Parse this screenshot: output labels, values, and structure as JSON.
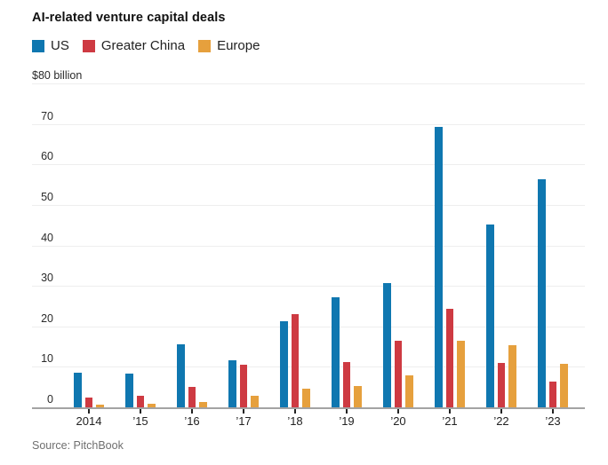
{
  "header": {
    "title": "AI-related venture capital deals"
  },
  "source": "Source: PitchBook",
  "colors": {
    "us": "#0f77b0",
    "greater_china": "#ce3a42",
    "europe": "#e6a03d",
    "gridline": "#eeeeee",
    "axis_line": "#a3a3a3",
    "title_text": "#111111",
    "label_text": "#222222",
    "source_text": "#6f6f6f"
  },
  "chart_data": {
    "type": "bar",
    "title": "AI-related venture capital deals",
    "unit_label": "$80 billion",
    "categories": [
      "2014",
      "’15",
      "’16",
      "’17",
      "’18",
      "’19",
      "’20",
      "’21",
      "’22",
      "’23"
    ],
    "series": [
      {
        "name": "US",
        "color": "#0f77b0",
        "values": [
          8.5,
          8.2,
          15.5,
          11.6,
          21.3,
          27.2,
          30.6,
          69.3,
          45.2,
          56.3
        ]
      },
      {
        "name": "Greater China",
        "color": "#ce3a42",
        "values": [
          2.3,
          2.7,
          5.0,
          10.6,
          22.9,
          11.1,
          16.5,
          24.3,
          10.9,
          6.3
        ]
      },
      {
        "name": "Europe",
        "color": "#e6a03d",
        "values": [
          0.6,
          0.9,
          1.3,
          2.9,
          4.6,
          5.3,
          7.9,
          16.5,
          15.3,
          10.7
        ]
      }
    ],
    "xlabel": "",
    "ylabel": "billions of dollars",
    "ylim": [
      0,
      80
    ],
    "yticks": [
      {
        "v": 0,
        "label": "0"
      },
      {
        "v": 10,
        "label": "10"
      },
      {
        "v": 20,
        "label": "20"
      },
      {
        "v": 30,
        "label": "30"
      },
      {
        "v": 40,
        "label": "40"
      },
      {
        "v": 50,
        "label": "50"
      },
      {
        "v": 60,
        "label": "60"
      },
      {
        "v": 70,
        "label": "70"
      },
      {
        "v": 80,
        "label": "$80 billion"
      }
    ],
    "grid": true,
    "legend_position": "top-left"
  }
}
